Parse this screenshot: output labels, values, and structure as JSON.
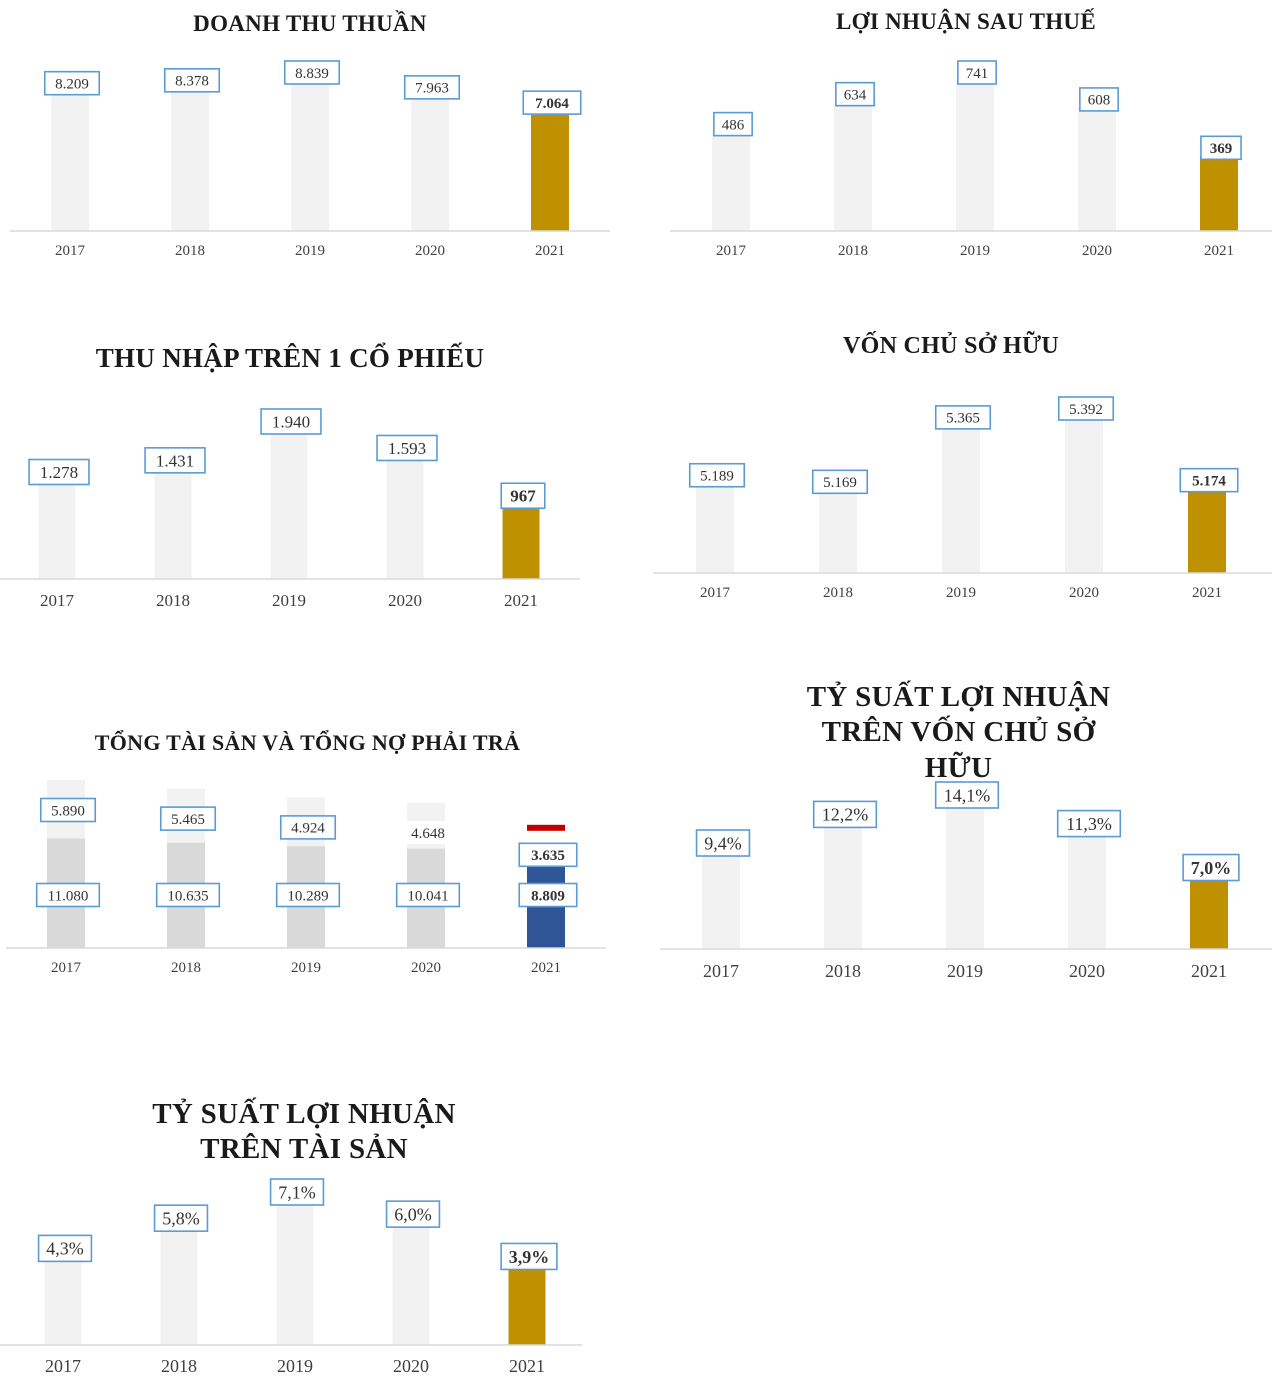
{
  "colors": {
    "bar": "#f2f2f2",
    "highlight": "#bf9000",
    "stack_bottom": "#d9d9d9",
    "stack_top": "#f2f2f2",
    "highlight_bottom": "#2f5597",
    "highlight_top": "#c00000",
    "label_border": "#5b9bd5",
    "axis": "#d9d9d9",
    "text": "#404040"
  },
  "chart_data": [
    {
      "type": "bar",
      "title": "DOANH THU THUẦN",
      "categories": [
        "2017",
        "2018",
        "2019",
        "2020",
        "2021"
      ],
      "values": [
        8209,
        8378,
        8839,
        7963,
        7064
      ],
      "labels": [
        "8.209",
        "8.378",
        "8.839",
        "7.963",
        "7.064"
      ],
      "highlight_index": 4
    },
    {
      "type": "bar",
      "title": "LỢI NHUẬN SAU THUẾ",
      "categories": [
        "2017",
        "2018",
        "2019",
        "2020",
        "2021"
      ],
      "values": [
        486,
        634,
        741,
        608,
        369
      ],
      "labels": [
        "486",
        "634",
        "741",
        "608",
        "369"
      ],
      "highlight_index": 4
    },
    {
      "type": "bar",
      "title": "THU NHẬP TRÊN 1 CỔ PHIẾU",
      "categories": [
        "2017",
        "2018",
        "2019",
        "2020",
        "2021"
      ],
      "values": [
        1278,
        1431,
        1940,
        1593,
        967
      ],
      "labels": [
        "1.278",
        "1.431",
        "1.940",
        "1.593",
        "967"
      ],
      "highlight_index": 4
    },
    {
      "type": "bar",
      "title": "VỐN CHỦ SỞ HỮU",
      "categories": [
        "2017",
        "2018",
        "2019",
        "2020",
        "2021"
      ],
      "values": [
        5189,
        5169,
        5365,
        5392,
        5174
      ],
      "labels": [
        "5.189",
        "5.169",
        "5.365",
        "5.392",
        "5.174"
      ],
      "highlight_index": 4
    },
    {
      "type": "bar",
      "stacked": true,
      "title": "TỔNG TÀI SẢN VÀ TỔNG NỢ PHẢI TRẢ",
      "categories": [
        "2017",
        "2018",
        "2019",
        "2020",
        "2021"
      ],
      "series": [
        {
          "values": [
            11080,
            10635,
            10289,
            10041,
            8809
          ],
          "labels": [
            "11.080",
            "10.635",
            "10.289",
            "10.041",
            "8.809"
          ]
        },
        {
          "values": [
            5890,
            5465,
            4924,
            4648,
            3635
          ],
          "labels": [
            "5.890",
            "5.465",
            "4.924",
            "4.648",
            "3.635"
          ]
        }
      ],
      "highlight_index": 4
    },
    {
      "type": "bar",
      "title": "TỶ SUẤT LỢI NHUẬN TRÊN VỐN CHỦ SỞ HỮU",
      "categories": [
        "2017",
        "2018",
        "2019",
        "2020",
        "2021"
      ],
      "values": [
        9.4,
        12.2,
        14.1,
        11.3,
        7.0
      ],
      "labels": [
        "9,4%",
        "12,2%",
        "14,1%",
        "11,3%",
        "7,0%"
      ],
      "highlight_index": 4
    },
    {
      "type": "bar",
      "title": "TỶ SUẤT LỢI NHUẬN TRÊN TÀI SẢN",
      "categories": [
        "2017",
        "2018",
        "2019",
        "2020",
        "2021"
      ],
      "values": [
        4.3,
        5.8,
        7.1,
        6.0,
        3.9
      ],
      "labels": [
        "4,3%",
        "5,8%",
        "7,1%",
        "6,0%",
        "3,9%"
      ],
      "highlight_index": 4
    }
  ]
}
